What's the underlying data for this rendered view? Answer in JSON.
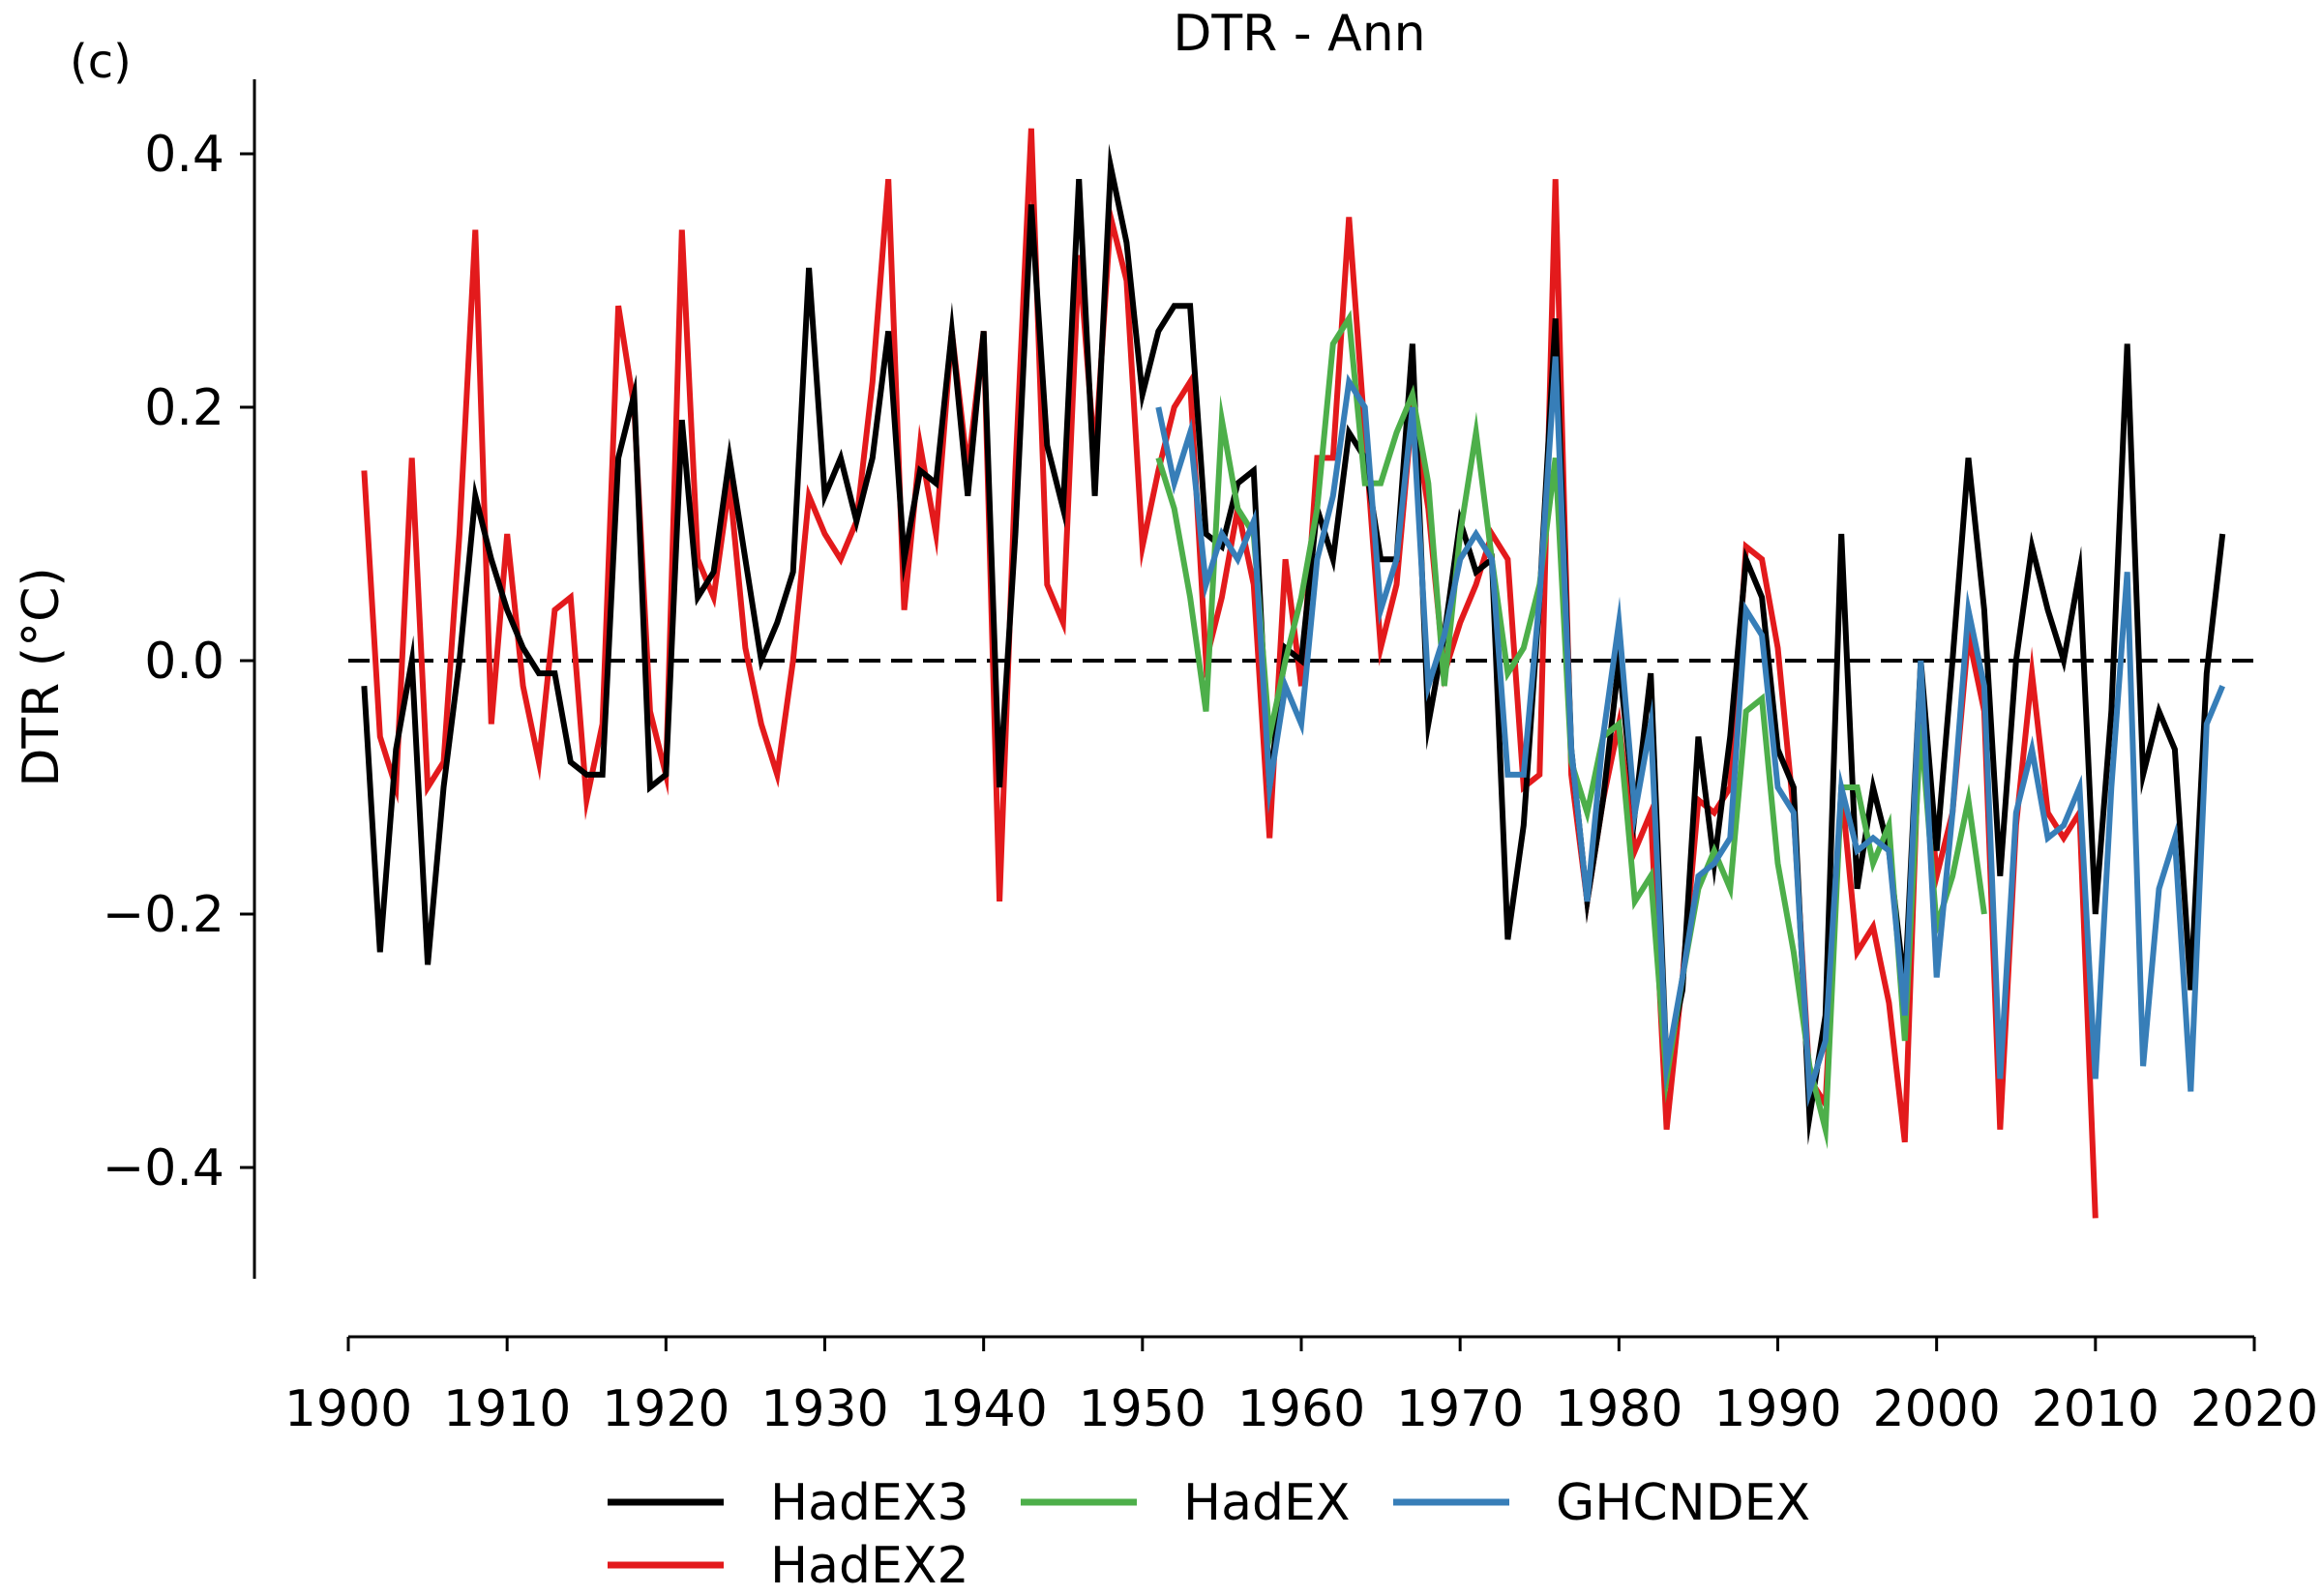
{
  "chart_data": {
    "type": "line",
    "panel_label": "(c)",
    "title": "DTR - Ann",
    "ylabel": "DTR (°C)",
    "xlabel": "",
    "xlim": [
      1900,
      2020
    ],
    "ylim": [
      -0.48,
      0.46
    ],
    "x_ticks": [
      1900,
      1910,
      1920,
      1930,
      1940,
      1950,
      1960,
      1970,
      1980,
      1990,
      2000,
      2010,
      2020
    ],
    "y_ticks": [
      0.4,
      0.2,
      0.0,
      -0.2,
      -0.4
    ],
    "y_tick_labels": [
      "0.4",
      "0.2",
      "0.0",
      "−0.2",
      "−0.4"
    ],
    "grid": false,
    "reference_line": {
      "y": 0.0,
      "style": "dashed",
      "color": "#000000"
    },
    "legend": {
      "placement": "bottom-center"
    },
    "series": [
      {
        "name": "HadEX2",
        "color": "#e31a1c",
        "x_start": 1901,
        "values": [
          0.15,
          -0.06,
          -0.1,
          0.16,
          -0.1,
          -0.08,
          0.1,
          0.34,
          -0.05,
          0.1,
          -0.02,
          -0.08,
          0.04,
          0.05,
          -0.11,
          -0.05,
          0.28,
          0.2,
          -0.04,
          -0.09,
          0.34,
          0.08,
          0.05,
          0.14,
          0.01,
          -0.05,
          -0.09,
          0.0,
          0.13,
          0.1,
          0.08,
          0.11,
          0.22,
          0.38,
          0.04,
          0.17,
          0.1,
          0.26,
          0.15,
          0.26,
          -0.19,
          0.15,
          0.42,
          0.06,
          0.03,
          0.32,
          0.16,
          0.35,
          0.3,
          0.09,
          0.15,
          0.2,
          0.22,
          0.0,
          0.05,
          0.12,
          0.06,
          -0.14,
          0.08,
          -0.02,
          0.16,
          0.16,
          0.35,
          0.18,
          0.01,
          0.06,
          0.2,
          0.12,
          -0.01,
          0.03,
          0.06,
          0.1,
          0.08,
          -0.1,
          -0.09,
          0.38,
          -0.09,
          -0.19,
          -0.11,
          -0.05,
          -0.15,
          -0.12,
          -0.37,
          -0.25,
          -0.11,
          -0.12,
          -0.1,
          0.09,
          0.08,
          0.01,
          -0.12,
          -0.33,
          -0.35,
          -0.1,
          -0.23,
          -0.21,
          -0.27,
          -0.38,
          -0.02,
          -0.17,
          -0.12,
          0.02,
          -0.04,
          -0.37,
          -0.13,
          -0.01,
          -0.12,
          -0.14,
          -0.12,
          -0.44
        ]
      },
      {
        "name": "HadEX3",
        "color": "#000000",
        "x_start": 1901,
        "values": [
          -0.02,
          -0.23,
          -0.07,
          0.0,
          -0.24,
          -0.1,
          0.0,
          0.13,
          0.08,
          0.04,
          0.01,
          -0.01,
          -0.01,
          -0.08,
          -0.09,
          -0.09,
          0.16,
          0.21,
          -0.1,
          -0.09,
          0.19,
          0.05,
          0.07,
          0.16,
          0.08,
          0.0,
          0.03,
          0.07,
          0.31,
          0.13,
          0.16,
          0.11,
          0.16,
          0.26,
          0.08,
          0.15,
          0.14,
          0.26,
          0.13,
          0.26,
          -0.1,
          0.1,
          0.36,
          0.17,
          0.12,
          0.38,
          0.13,
          0.39,
          0.33,
          0.21,
          0.26,
          0.28,
          0.28,
          0.1,
          0.09,
          0.14,
          0.15,
          -0.1,
          0.01,
          0.0,
          0.12,
          0.08,
          0.18,
          0.16,
          0.08,
          0.08,
          0.25,
          -0.05,
          0.02,
          0.11,
          0.07,
          0.08,
          -0.22,
          -0.13,
          0.05,
          0.27,
          -0.07,
          -0.19,
          -0.11,
          0.0,
          -0.12,
          -0.01,
          -0.32,
          -0.26,
          -0.06,
          -0.16,
          -0.06,
          0.08,
          0.05,
          -0.07,
          -0.1,
          -0.36,
          -0.28,
          0.1,
          -0.18,
          -0.1,
          -0.15,
          -0.26,
          0.0,
          -0.15,
          0.0,
          0.16,
          0.04,
          -0.17,
          0.0,
          0.09,
          0.04,
          0.0,
          0.07,
          -0.2,
          -0.04,
          0.25,
          -0.09,
          -0.04,
          -0.07,
          -0.26,
          -0.01,
          0.1
        ]
      },
      {
        "name": "HadEX",
        "color": "#4daf4a",
        "x_start": 1951,
        "values": [
          0.16,
          0.12,
          0.05,
          -0.04,
          0.19,
          0.12,
          0.1,
          -0.06,
          0.0,
          0.05,
          0.12,
          0.25,
          0.27,
          0.14,
          0.14,
          0.18,
          0.21,
          0.14,
          -0.02,
          0.1,
          0.18,
          0.08,
          -0.01,
          0.01,
          0.06,
          0.16,
          -0.08,
          -0.12,
          -0.06,
          -0.05,
          -0.19,
          -0.17,
          -0.33,
          -0.25,
          -0.18,
          -0.15,
          -0.18,
          -0.04,
          -0.03,
          -0.16,
          -0.23,
          -0.32,
          -0.37,
          -0.1,
          -0.1,
          -0.16,
          -0.13,
          -0.3,
          -0.05,
          -0.21,
          -0.17,
          -0.11,
          -0.2
        ]
      },
      {
        "name": "GHCNDEX",
        "color": "#377eb8",
        "x_start": 1951,
        "values": [
          0.2,
          0.14,
          0.18,
          0.06,
          0.1,
          0.08,
          0.11,
          -0.1,
          -0.02,
          -0.05,
          0.08,
          0.13,
          0.22,
          0.2,
          0.04,
          0.08,
          0.2,
          -0.02,
          0.02,
          0.08,
          0.1,
          0.08,
          -0.09,
          -0.09,
          0.05,
          0.24,
          -0.07,
          -0.19,
          -0.06,
          0.03,
          -0.12,
          -0.05,
          -0.32,
          -0.25,
          -0.17,
          -0.16,
          -0.14,
          0.04,
          0.02,
          -0.1,
          -0.12,
          -0.34,
          -0.3,
          -0.1,
          -0.15,
          -0.14,
          -0.15,
          -0.28,
          0.0,
          -0.25,
          -0.12,
          0.04,
          -0.02,
          -0.33,
          -0.12,
          -0.07,
          -0.14,
          -0.13,
          -0.1,
          -0.33,
          -0.1,
          0.07,
          -0.32,
          -0.18,
          -0.14,
          -0.34,
          -0.05,
          -0.02
        ]
      }
    ]
  }
}
